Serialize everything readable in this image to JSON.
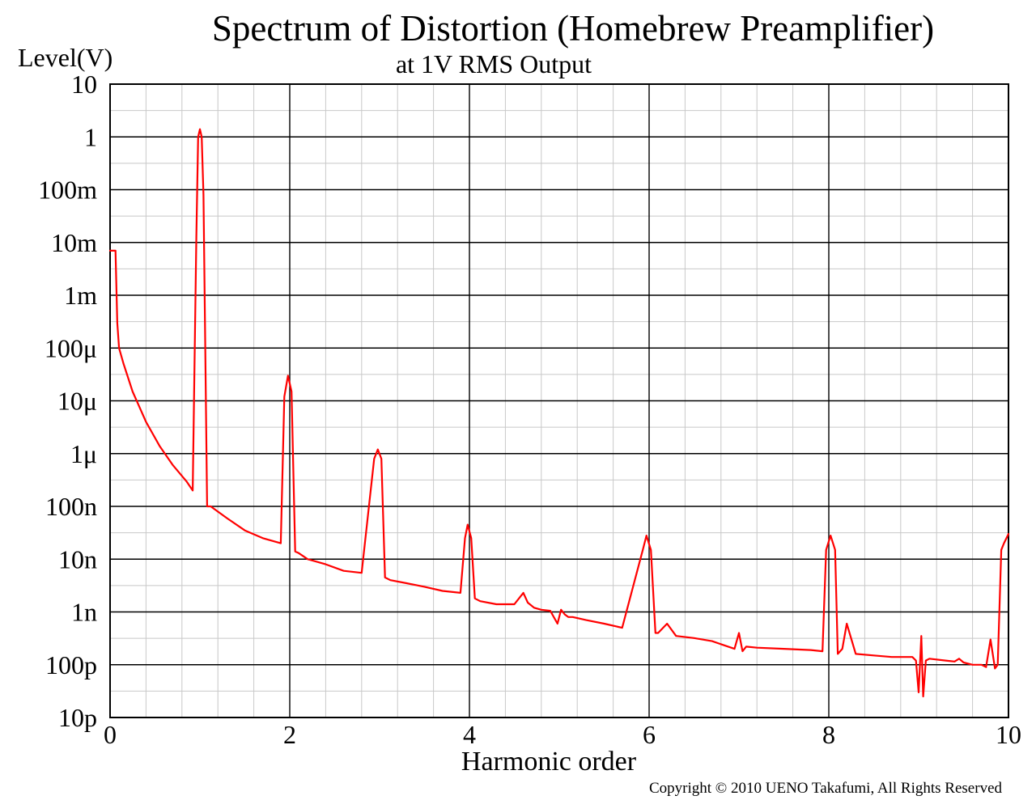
{
  "chart_data": {
    "type": "line",
    "title": "Spectrum of Distortion (Homebrew Preamplifier)",
    "subtitle": "at 1V RMS Output",
    "xlabel": "Harmonic order",
    "ylabel": "Level(V)",
    "copyright": "Copyright © 2010 UENO Takafumi, All Rights Reserved",
    "xlim": [
      0,
      10
    ],
    "ylim": [
      1e-11,
      10
    ],
    "yscale": "log",
    "grid": true,
    "x_ticks": [
      0,
      2,
      4,
      6,
      8,
      10
    ],
    "x_tick_labels": [
      "0",
      "2",
      "4",
      "6",
      "8",
      "10"
    ],
    "y_ticks": [
      10,
      1,
      0.1,
      0.01,
      0.001,
      0.0001,
      1e-05,
      1e-06,
      1e-07,
      1e-08,
      1e-09,
      1e-10,
      1e-11
    ],
    "y_tick_labels": [
      "10",
      "1",
      "100m",
      "10m",
      "1m",
      "100μ",
      "10μ",
      "1μ",
      "100n",
      "10n",
      "1n",
      "100p",
      "10p"
    ],
    "line_color": "#ff0000",
    "series": [
      {
        "x": [
          0.0,
          0.06,
          0.08,
          0.1,
          0.15,
          0.25,
          0.4,
          0.55,
          0.7,
          0.85,
          0.92,
          0.96,
          0.98,
          1.0,
          1.02,
          1.04,
          1.08,
          1.12,
          1.3,
          1.5,
          1.7,
          1.9,
          1.94,
          1.98,
          2.02,
          2.06,
          2.1,
          2.2,
          2.4,
          2.6,
          2.8,
          2.94,
          2.98,
          3.02,
          3.06,
          3.12,
          3.3,
          3.5,
          3.7,
          3.9,
          3.95,
          3.98,
          4.02,
          4.06,
          4.12,
          4.3,
          4.5,
          4.6,
          4.65,
          4.72,
          4.8,
          4.9,
          4.98,
          5.02,
          5.06,
          5.1,
          5.15,
          5.3,
          5.5,
          5.7,
          5.93,
          5.97,
          6.02,
          6.07,
          6.1,
          6.2,
          6.3,
          6.5,
          6.7,
          6.95,
          7.0,
          7.04,
          7.08,
          7.2,
          7.5,
          7.8,
          7.93,
          7.97,
          8.02,
          8.07,
          8.1,
          8.15,
          8.2,
          8.3,
          8.5,
          8.7,
          8.93,
          8.97,
          9.0,
          9.03,
          9.05,
          9.08,
          9.12,
          9.3,
          9.4,
          9.45,
          9.5,
          9.6,
          9.7,
          9.75,
          9.8,
          9.85,
          9.88,
          9.92,
          9.95,
          10.0
        ],
        "values": [
          0.007,
          0.007,
          0.0003,
          0.0001,
          5e-05,
          1.5e-05,
          4e-06,
          1.4e-06,
          6e-07,
          3e-07,
          2e-07,
          0.013,
          1.0,
          1.4,
          1.0,
          0.08,
          1e-07,
          1e-07,
          6e-08,
          3.5e-08,
          2.5e-08,
          2e-08,
          1.2e-05,
          3e-05,
          1.5e-05,
          1.4e-08,
          1.3e-08,
          1e-08,
          8e-09,
          6e-09,
          5.5e-09,
          8e-07,
          1.2e-06,
          8e-07,
          4.5e-09,
          4e-09,
          3.5e-09,
          3e-09,
          2.5e-09,
          2.3e-09,
          2.5e-08,
          4.5e-08,
          2.5e-08,
          1.8e-09,
          1.6e-09,
          1.4e-09,
          1.4e-09,
          2.3e-09,
          1.5e-09,
          1.2e-09,
          1.1e-09,
          1.05e-09,
          6e-10,
          1.1e-09,
          9e-10,
          8e-10,
          8e-10,
          7e-10,
          6e-10,
          5e-10,
          1.5e-08,
          2.8e-08,
          1.5e-08,
          4e-10,
          4e-10,
          6e-10,
          3.5e-10,
          3.2e-10,
          2.8e-10,
          2e-10,
          4e-10,
          1.8e-10,
          2.2e-10,
          2.1e-10,
          2e-10,
          1.9e-10,
          1.8e-10,
          1.5e-08,
          2.8e-08,
          1.5e-08,
          1.6e-10,
          2e-10,
          6e-10,
          1.6e-10,
          1.5e-10,
          1.4e-10,
          1.4e-10,
          1.2e-10,
          3e-11,
          3.5e-10,
          2.5e-11,
          1.2e-10,
          1.3e-10,
          1.2e-10,
          1.15e-10,
          1.3e-10,
          1.1e-10,
          1e-10,
          1e-10,
          9e-11,
          3e-10,
          8.5e-11,
          1e-10,
          1.5e-08,
          2e-08,
          3e-08
        ]
      }
    ]
  }
}
